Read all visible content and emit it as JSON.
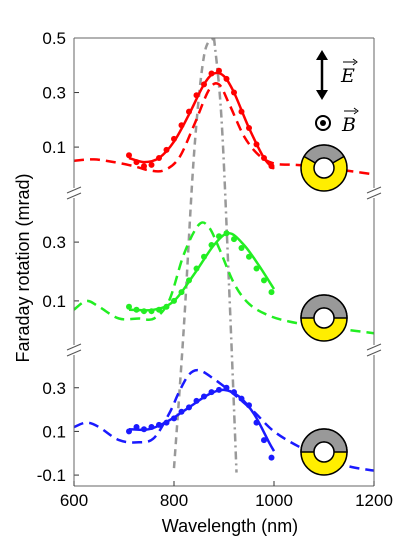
{
  "chart_data": {
    "type": "line",
    "xlabel": "Wavelength (nm)",
    "ylabel": "Faraday rotation (mrad)",
    "xlim": [
      600,
      1200
    ],
    "x_ticks": [
      "600",
      "800",
      "1000",
      "1200"
    ],
    "x_tick_values": [
      600,
      800,
      1000,
      1200
    ],
    "grid": false,
    "annotations": {
      "E_label": "E",
      "B_label": "B"
    },
    "colors": {
      "top": "#ff0000",
      "middle": "#22ee22",
      "bottom": "#1a1aff",
      "reference": "#999999",
      "disk_fill": "#ffee00",
      "disk_shade": "#999999"
    },
    "panels": [
      {
        "id": "top",
        "ylim": [
          -0.05,
          0.5
        ],
        "y_ticks": [
          "0.1",
          "0.3",
          "0.5"
        ],
        "y_tick_values": [
          0.1,
          0.3,
          0.5
        ],
        "disk_shaded_sector": "top-third",
        "series": [
          {
            "kind": "points",
            "x": [
              710,
              725,
              740,
              755,
              770,
              785,
              800,
              815,
              830,
              845,
              860,
              875,
              890,
              905,
              920,
              935,
              950,
              965,
              980,
              995
            ],
            "y": [
              0.07,
              0.045,
              0.03,
              0.035,
              0.06,
              0.09,
              0.13,
              0.18,
              0.23,
              0.29,
              0.33,
              0.37,
              0.38,
              0.35,
              0.3,
              0.23,
              0.17,
              0.11,
              0.06,
              0.03
            ]
          },
          {
            "kind": "fit-solid",
            "x": [
              710,
              740,
              770,
              800,
              830,
              860,
              880,
              900,
              920,
              950,
              980,
              1000
            ],
            "y": [
              0.06,
              0.045,
              0.06,
              0.12,
              0.22,
              0.33,
              0.37,
              0.36,
              0.3,
              0.17,
              0.06,
              0.02
            ]
          },
          {
            "kind": "model-dashed",
            "x": [
              600,
              640,
              680,
              720,
              750,
              780,
              810,
              840,
              870,
              890,
              910,
              940,
              970,
              1000,
              1040,
              1080,
              1120,
              1160,
              1200
            ],
            "y": [
              0.05,
              0.055,
              0.045,
              0.03,
              0.015,
              0.015,
              0.06,
              0.18,
              0.31,
              0.33,
              0.26,
              0.14,
              0.07,
              0.04,
              0.035,
              0.03,
              0.02,
              0.01,
              0.0
            ]
          }
        ]
      },
      {
        "id": "middle",
        "ylim": [
          -0.05,
          0.45
        ],
        "y_ticks": [
          "0.1",
          "0.3"
        ],
        "y_tick_values": [
          0.1,
          0.3
        ],
        "disk_shaded_sector": "top-half",
        "series": [
          {
            "kind": "points",
            "x": [
              710,
              725,
              740,
              755,
              770,
              785,
              800,
              815,
              830,
              845,
              860,
              875,
              890,
              905,
              920,
              935,
              950,
              965,
              980,
              995
            ],
            "y": [
              0.08,
              0.07,
              0.065,
              0.065,
              0.07,
              0.08,
              0.1,
              0.13,
              0.17,
              0.21,
              0.25,
              0.29,
              0.32,
              0.33,
              0.31,
              0.28,
              0.25,
              0.21,
              0.17,
              0.13
            ]
          },
          {
            "kind": "fit-solid",
            "x": [
              710,
              760,
              800,
              840,
              880,
              910,
              940,
              970,
              1000
            ],
            "y": [
              0.07,
              0.07,
              0.1,
              0.19,
              0.29,
              0.33,
              0.29,
              0.22,
              0.14
            ]
          },
          {
            "kind": "model-dashed",
            "x": [
              600,
              625,
              650,
              690,
              730,
              760,
              790,
              820,
              850,
              870,
              890,
              920,
              950,
              990,
              1030,
              1080,
              1130,
              1200
            ],
            "y": [
              0.07,
              0.1,
              0.08,
              0.04,
              0.04,
              0.04,
              0.1,
              0.26,
              0.36,
              0.35,
              0.28,
              0.16,
              0.09,
              0.05,
              0.03,
              0.015,
              0.005,
              -0.01
            ]
          }
        ]
      },
      {
        "id": "bottom",
        "ylim": [
          -0.15,
          0.45
        ],
        "y_ticks": [
          "-0.1",
          "0.1",
          "0.3"
        ],
        "y_tick_values": [
          -0.1,
          0.1,
          0.3
        ],
        "disk_shaded_sector": "top-half",
        "series": [
          {
            "kind": "points",
            "x": [
              710,
              725,
              740,
              755,
              770,
              785,
              800,
              815,
              830,
              845,
              860,
              875,
              890,
              905,
              920,
              935,
              950,
              965,
              980,
              995
            ],
            "y": [
              0.1,
              0.12,
              0.11,
              0.12,
              0.13,
              0.14,
              0.16,
              0.19,
              0.21,
              0.24,
              0.26,
              0.28,
              0.29,
              0.3,
              0.28,
              0.25,
              0.22,
              0.14,
              0.06,
              -0.02
            ]
          },
          {
            "kind": "fit-solid",
            "x": [
              710,
              750,
              790,
              830,
              870,
              900,
              930,
              960,
              990,
              1000
            ],
            "y": [
              0.11,
              0.11,
              0.15,
              0.21,
              0.27,
              0.29,
              0.26,
              0.18,
              0.05,
              0.01
            ]
          },
          {
            "kind": "model-dashed",
            "x": [
              600,
              625,
              650,
              690,
              730,
              760,
              790,
              810,
              830,
              850,
              880,
              920,
              960,
              1000,
              1050,
              1100,
              1150,
              1200
            ],
            "y": [
              0.12,
              0.14,
              0.12,
              0.06,
              0.05,
              0.07,
              0.18,
              0.28,
              0.36,
              0.38,
              0.34,
              0.27,
              0.19,
              0.1,
              0.03,
              -0.02,
              -0.06,
              -0.08
            ]
          }
        ]
      }
    ],
    "reference_curves": [
      {
        "kind": "dashed",
        "x": [
          800,
          820,
          840,
          860,
          880
        ],
        "y_frac": [
          0.04,
          0.36,
          0.74,
          0.96,
          1.0
        ]
      },
      {
        "kind": "dash-dot",
        "x": [
          880,
          895,
          910,
          925
        ],
        "y_frac": [
          1.0,
          0.82,
          0.45,
          0.03
        ]
      }
    ]
  }
}
